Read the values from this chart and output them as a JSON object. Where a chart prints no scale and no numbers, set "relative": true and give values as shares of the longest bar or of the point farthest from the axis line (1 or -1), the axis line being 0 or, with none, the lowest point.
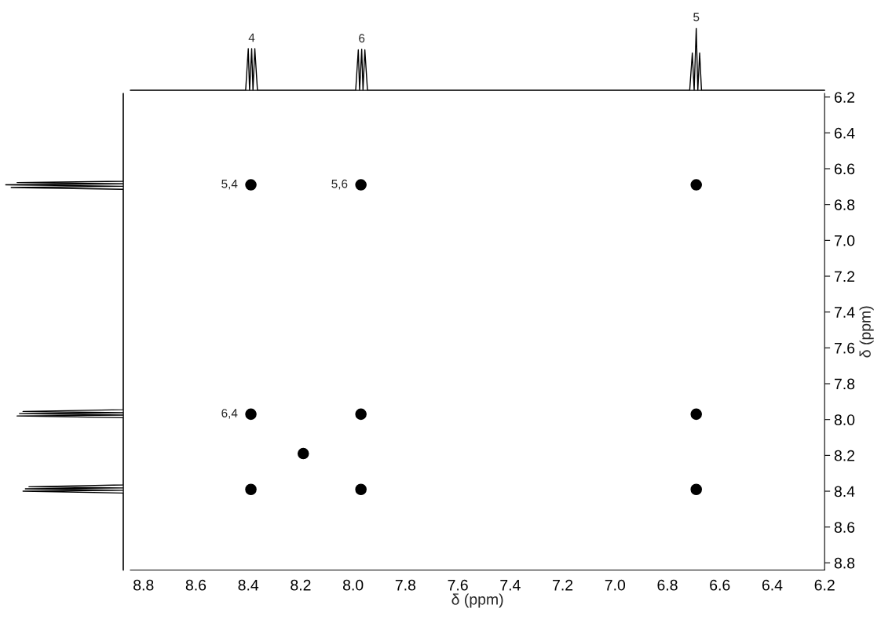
{
  "chart_data": [
    {
      "type": "line",
      "relative": true,
      "color": "#000000",
      "tick_labels": false,
      "xlim": [
        8.85,
        6.2
      ],
      "x": [
        8.85,
        8.41,
        8.4,
        8.395,
        8.387,
        8.382,
        8.375,
        8.365,
        7.99,
        7.98,
        7.975,
        7.967,
        7.962,
        7.955,
        7.945,
        6.715,
        6.705,
        6.698,
        6.69,
        6.684,
        6.677,
        6.67,
        6.2
      ],
      "values": [
        0,
        0,
        0.67,
        0,
        0.67,
        0,
        0.67,
        0,
        0,
        0.65,
        0,
        0.66,
        0,
        0.65,
        0,
        0,
        0.6,
        0,
        1.0,
        0,
        0.6,
        0,
        0
      ],
      "annotations": [
        {
          "text": "4",
          "x": 8.387,
          "y": 0.67
        },
        {
          "text": "6",
          "x": 7.967,
          "y": 0.66
        },
        {
          "text": "5",
          "x": 6.69,
          "y": 1.0
        }
      ]
    },
    {
      "type": "line",
      "orientation": "horizontal",
      "relative": true,
      "color": "#000000",
      "tick_labels": false,
      "ylim": [
        8.84,
        6.18
      ],
      "x": [
        6.18,
        6.67,
        6.677,
        6.684,
        6.69,
        6.698,
        6.705,
        6.715,
        7.945,
        7.955,
        7.962,
        7.967,
        7.975,
        7.98,
        7.99,
        8.365,
        8.375,
        8.382,
        8.387,
        8.395,
        8.4,
        8.41,
        8.84
      ],
      "values": [
        0,
        0,
        -0.9,
        0,
        -1.0,
        0,
        -0.95,
        0,
        0,
        -0.85,
        0,
        -0.88,
        0,
        -0.9,
        0,
        0,
        -0.8,
        0,
        -0.83,
        0,
        -0.85,
        0,
        0
      ]
    },
    {
      "type": "scatter",
      "marker": "circle",
      "color": "#000000",
      "xlabel": "δ (ppm)",
      "ylabel": "δ (ppm)",
      "x": [
        8.39,
        7.97,
        6.69,
        8.39,
        7.97,
        6.69,
        8.39,
        7.97,
        6.69,
        8.19
      ],
      "values": [
        6.69,
        6.69,
        6.69,
        7.97,
        7.97,
        7.97,
        8.39,
        8.39,
        8.39,
        8.19
      ],
      "xlim": [
        8.85,
        6.2
      ],
      "ylim": [
        8.84,
        6.18
      ],
      "xticks": [
        8.8,
        8.6,
        8.4,
        8.2,
        {
          "value": 8.0,
          "label": "8.0"
        },
        7.8,
        7.6,
        7.4,
        7.2,
        {
          "value": 7.0,
          "label": "7.0"
        },
        6.8,
        6.6,
        6.4,
        6.2
      ],
      "yticks": [
        6.2,
        6.4,
        6.6,
        6.8,
        {
          "value": 7.0,
          "label": "7.0"
        },
        7.2,
        7.4,
        7.6,
        7.8,
        {
          "value": 8.0,
          "label": "8.0"
        },
        8.2,
        8.4,
        8.6,
        8.8
      ],
      "annotations": [
        {
          "text": "5,4",
          "x": 8.39,
          "y": 6.69
        },
        {
          "text": "5,6",
          "x": 7.97,
          "y": 6.69
        },
        {
          "text": "6,4",
          "x": 8.39,
          "y": 7.97
        }
      ]
    }
  ]
}
